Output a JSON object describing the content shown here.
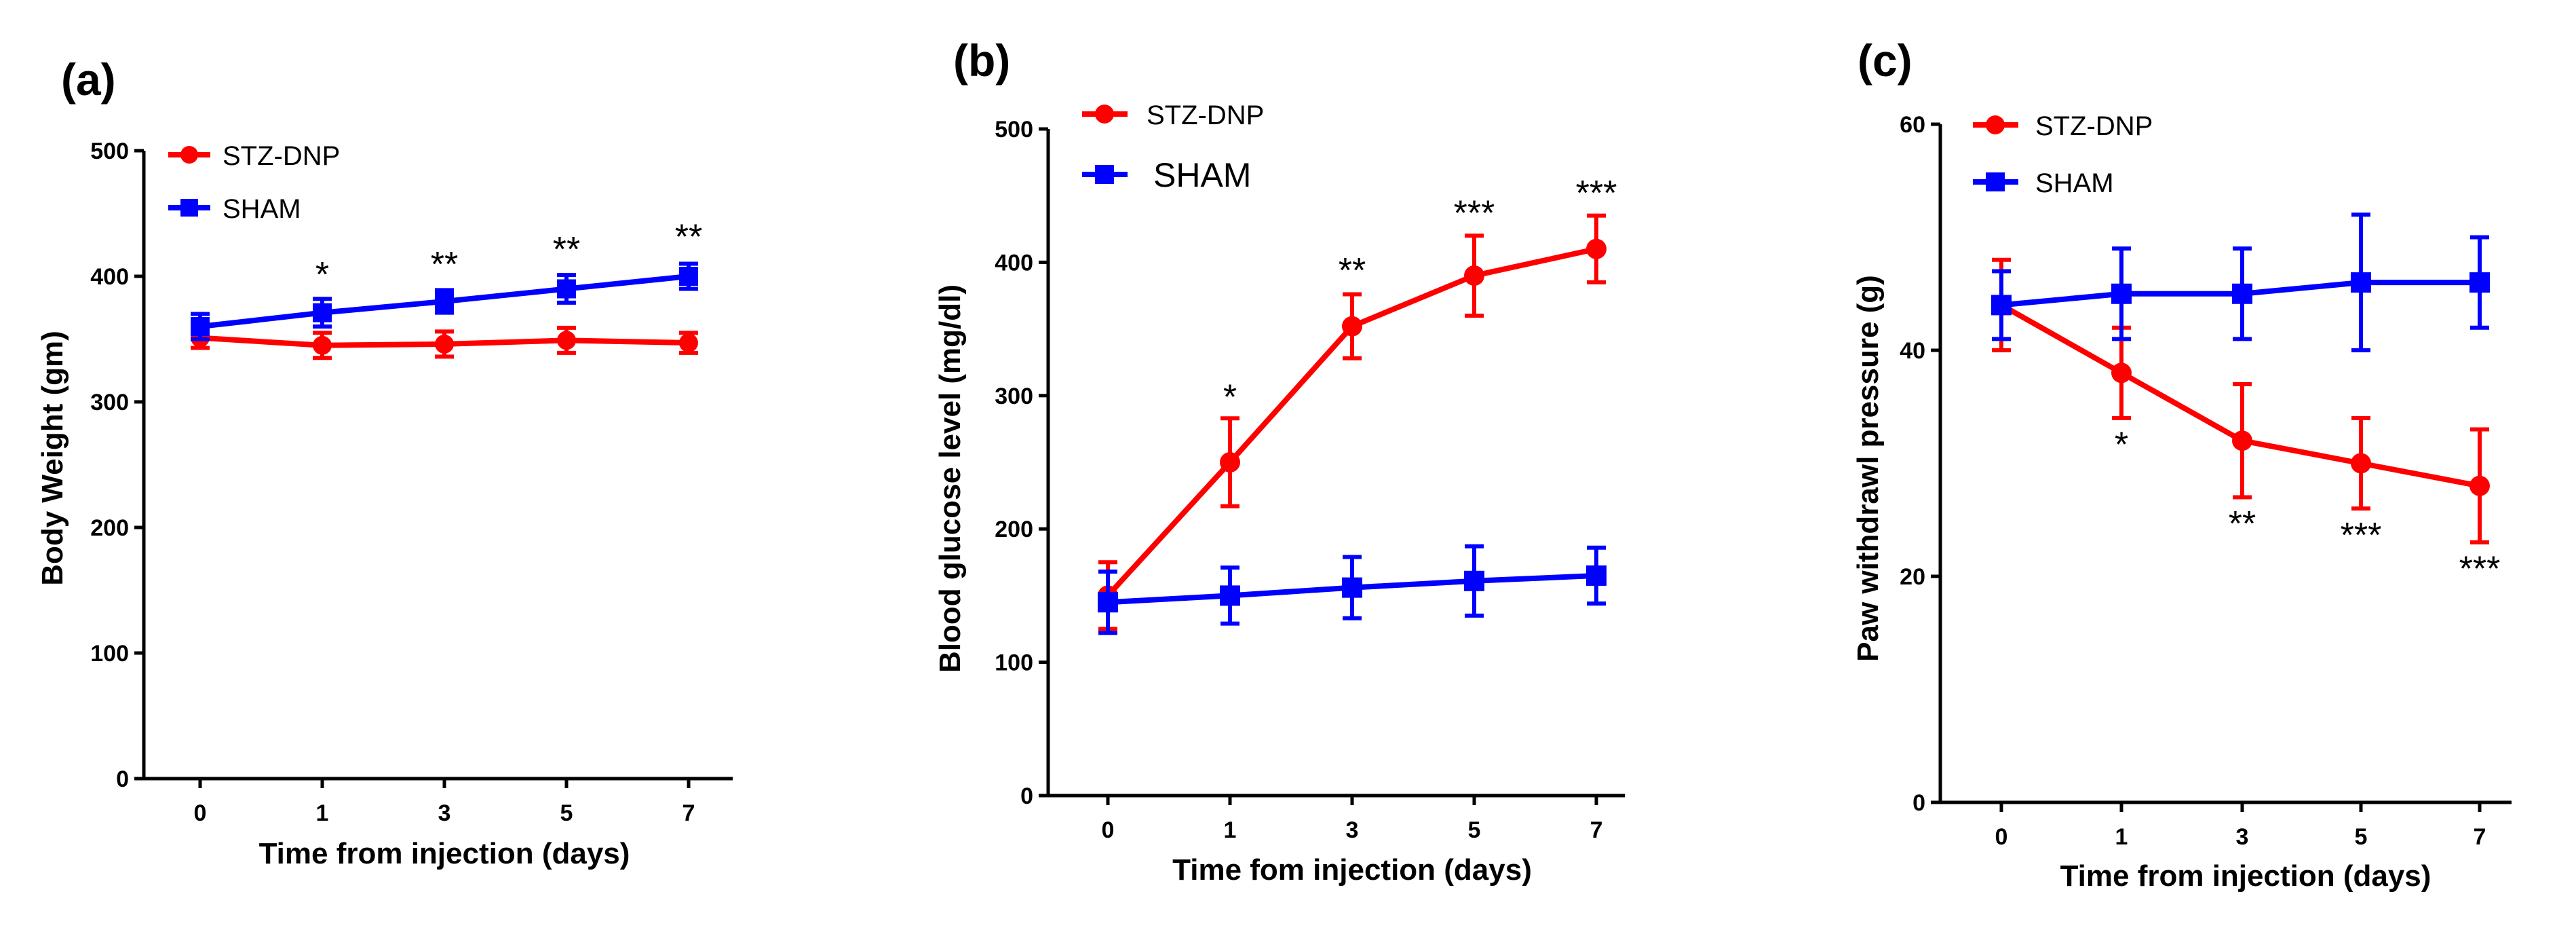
{
  "chart_data": [
    {
      "panel": "(a)",
      "type": "line",
      "title": "",
      "xlabel": "Time from injection (days)",
      "ylabel": "Body Weight (gm)",
      "categories": [
        "0",
        "1",
        "3",
        "5",
        "7"
      ],
      "ylim": [
        0,
        500
      ],
      "yticks": [
        0,
        100,
        200,
        300,
        400,
        500
      ],
      "legend_position": "top-left",
      "series": [
        {
          "name": "STZ-DNP",
          "color": "#ff0000",
          "marker": "circle",
          "values": [
            351,
            345,
            346,
            349,
            347
          ],
          "errors": [
            8,
            10,
            10,
            10,
            8
          ]
        },
        {
          "name": "SHAM",
          "color": "#0000ff",
          "marker": "square",
          "values": [
            360,
            371,
            380,
            390,
            400
          ],
          "errors": [
            10,
            11,
            9,
            11,
            10
          ]
        }
      ],
      "annotations": [
        {
          "category": "1",
          "text": "*",
          "anchor": "above",
          "ref_value": 392
        },
        {
          "category": "3",
          "text": "**",
          "anchor": "above",
          "ref_value": 400
        },
        {
          "category": "5",
          "text": "**",
          "anchor": "above",
          "ref_value": 412
        },
        {
          "category": "7",
          "text": "**",
          "anchor": "above",
          "ref_value": 422
        }
      ]
    },
    {
      "panel": "(b)",
      "type": "line",
      "title": "",
      "xlabel": "Time fom injection (days)",
      "ylabel": "Blood glucose level (mg/dl)",
      "categories": [
        "0",
        "1",
        "3",
        "5",
        "7"
      ],
      "ylim": [
        0,
        500
      ],
      "yticks": [
        0,
        100,
        200,
        300,
        400,
        500
      ],
      "legend_position": "top-left",
      "series": [
        {
          "name": "STZ-DNP",
          "color": "#ff0000",
          "marker": "circle",
          "values": [
            150,
            250,
            352,
            390,
            410
          ],
          "errors": [
            25,
            33,
            24,
            30,
            25
          ]
        },
        {
          "name": "SHAM",
          "color": "#0000ff",
          "marker": "square",
          "values": [
            145,
            150,
            156,
            161,
            165
          ],
          "errors": [
            23,
            21,
            23,
            26,
            21
          ]
        }
      ],
      "annotations": [
        {
          "category": "1",
          "text": "*",
          "anchor": "above",
          "ref_value": 290
        },
        {
          "category": "3",
          "text": "**",
          "anchor": "above",
          "ref_value": 385
        },
        {
          "category": "5",
          "text": "***",
          "anchor": "above",
          "ref_value": 428
        },
        {
          "category": "7",
          "text": "***",
          "anchor": "above",
          "ref_value": 443
        }
      ]
    },
    {
      "panel": "(c)",
      "type": "line",
      "title": "",
      "xlabel": "Time from injection (days)",
      "ylabel": "Paw withdrawl pressure (g)",
      "categories": [
        "0",
        "1",
        "3",
        "5",
        "7"
      ],
      "ylim": [
        0,
        60
      ],
      "yticks": [
        0,
        20,
        40,
        60
      ],
      "legend_position": "top-left",
      "series": [
        {
          "name": "STZ-DNP",
          "color": "#ff0000",
          "marker": "circle",
          "values": [
            44,
            38,
            32,
            30,
            28
          ],
          "errors": [
            4,
            4,
            5,
            4,
            5
          ]
        },
        {
          "name": "SHAM",
          "color": "#0000ff",
          "marker": "square",
          "values": [
            44,
            45,
            45,
            46,
            46
          ],
          "errors": [
            3,
            4,
            4,
            6,
            4
          ]
        }
      ],
      "annotations": [
        {
          "category": "1",
          "text": "*",
          "anchor": "below",
          "ref_value": 33
        },
        {
          "category": "3",
          "text": "**",
          "anchor": "below",
          "ref_value": 26
        },
        {
          "category": "5",
          "text": "***",
          "anchor": "below",
          "ref_value": 25
        },
        {
          "category": "7",
          "text": "***",
          "anchor": "below",
          "ref_value": 22
        }
      ]
    }
  ]
}
